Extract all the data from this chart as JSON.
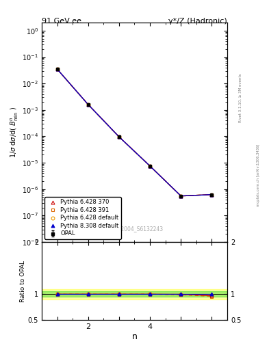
{
  "title_left": "91 GeV ee",
  "title_right": "γ*/Z (Hadronic)",
  "ylabel_main": "1/σ dσ/d( Bⁿ_min )",
  "ylabel_ratio": "Ratio to OPAL",
  "xlabel": "n",
  "watermark": "OPAL_2004_S6132243",
  "right_label": "mcplots.cern.ch [arXiv:1306.3436]",
  "right_label2": "Rivet 3.1.10, ≥ 3M events",
  "x_data": [
    1,
    2,
    3,
    4,
    5,
    6
  ],
  "opal_y": [
    0.035,
    0.0016,
    9.5e-05,
    7.5e-06,
    5.5e-07,
    6.2e-07
  ],
  "opal_yerr_lo": [
    0.0015,
    8e-05,
    4e-06,
    3e-07,
    2.5e-08,
    3e-08
  ],
  "opal_yerr_hi": [
    0.0015,
    8e-05,
    4e-06,
    3e-07,
    2.5e-08,
    3e-08
  ],
  "pythia_370_y": [
    0.0352,
    0.00161,
    9.6e-05,
    7.52e-06,
    5.52e-07,
    6.22e-07
  ],
  "pythia_391_y": [
    0.0352,
    0.00161,
    9.6e-05,
    7.52e-06,
    5.52e-07,
    6.22e-07
  ],
  "pythia_def_y": [
    0.0352,
    0.00161,
    9.6e-05,
    7.52e-06,
    5.52e-07,
    6.22e-07
  ],
  "pythia_8_y": [
    0.0352,
    0.00161,
    9.6e-05,
    7.52e-06,
    5.52e-07,
    6.22e-07
  ],
  "r370": [
    1.0,
    1.0,
    1.0,
    1.0,
    0.998,
    0.972
  ],
  "r391": [
    1.0,
    1.0,
    1.0,
    1.0,
    0.988,
    0.958
  ],
  "rdef": [
    1.0,
    1.0,
    1.0,
    1.0,
    0.992,
    0.975
  ],
  "r8": [
    1.0,
    1.0,
    1.0,
    1.0,
    1.0,
    1.0
  ],
  "color_opal": "#000000",
  "color_370": "#cc0000",
  "color_391": "#dd6600",
  "color_def": "#ee9900",
  "color_8": "#0000cc",
  "ylim_main_lo": 1e-08,
  "ylim_main_hi": 2.0,
  "ylim_ratio_lo": 0.5,
  "ylim_ratio_hi": 2.0,
  "xlim_lo": 0.5,
  "xlim_hi": 6.5
}
